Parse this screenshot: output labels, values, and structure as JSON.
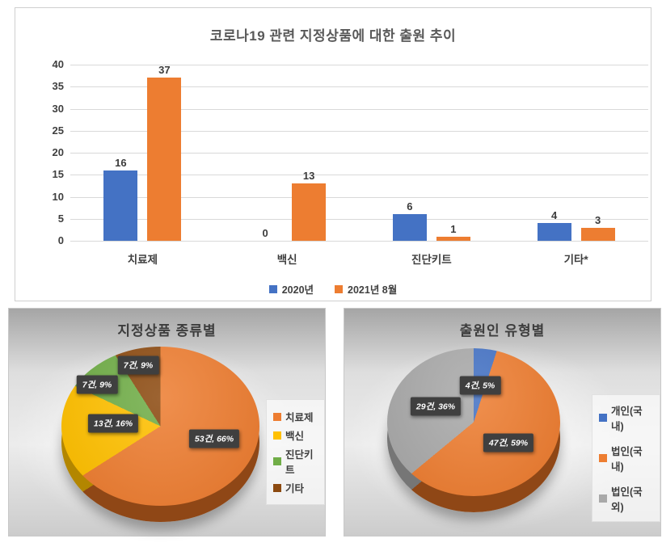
{
  "colors": {
    "blue": "#4472C4",
    "blue_dark": "#2c4d8e",
    "orange": "#ED7D31",
    "orange_dark": "#8f4716",
    "yellow": "#FFC000",
    "yellow_dark": "#b38600",
    "green": "#70AD47",
    "green_dark": "#4e7a31",
    "brown": "#8C4A10",
    "brown_dark": "#5a2e08",
    "gray": "#A9A9A9",
    "gray_dark": "#767676",
    "label_box": "#3F3F3F",
    "label_text": "#FFFFFF",
    "grid": "#D9D9D9",
    "axis_text": "#404040",
    "title_text": "#595959"
  },
  "chart_data": [
    {
      "id": "bar",
      "type": "bar",
      "title": "코로나19 관련 지정상품에 대한 출원 추이",
      "categories": [
        "치료제",
        "백신",
        "진단키트",
        "기타*"
      ],
      "series": [
        {
          "name": "2020년",
          "color_key": "blue",
          "values": [
            16,
            0,
            6,
            4
          ]
        },
        {
          "name": "2021년 8월",
          "color_key": "orange",
          "values": [
            37,
            13,
            1,
            3
          ]
        }
      ],
      "ylim": [
        0,
        40
      ],
      "y_ticks": [
        0,
        5,
        10,
        15,
        20,
        25,
        30,
        35,
        40
      ],
      "grid": true,
      "legend_position": "bottom"
    },
    {
      "id": "pie-products",
      "type": "pie",
      "title": "지정상품 종류별",
      "legend_position": "right",
      "slices": [
        {
          "label": "치료제",
          "value": 53,
          "pct": 66,
          "data_label": "53건, 66%",
          "color_key": "orange",
          "label_r": 0.62,
          "label_dy": -14
        },
        {
          "label": "백신",
          "value": 13,
          "pct": 16,
          "data_label": "13건, 16%",
          "color_key": "yellow",
          "label_r": 0.48,
          "label_dy": -6
        },
        {
          "label": "진단키트",
          "value": 7,
          "pct": 9,
          "data_label": "7건, 9%",
          "color_key": "green",
          "label_r": 0.85,
          "label_dy": 4
        },
        {
          "label": "기타",
          "value": 7,
          "pct": 9,
          "data_label": "7건, 9%",
          "color_key": "brown",
          "label_r": 0.8,
          "label_dy": 0
        }
      ]
    },
    {
      "id": "pie-applicants",
      "type": "pie",
      "title": "출원인 유형별",
      "legend_position": "right",
      "slices": [
        {
          "label": "개인(국내)",
          "value": 4,
          "pct": 5,
          "data_label": "4건, 5%",
          "color_key": "blue",
          "label_r": 0.5,
          "label_dy": 0
        },
        {
          "label": "법인(국내)",
          "value": 47,
          "pct": 59,
          "data_label": "47건, 59%",
          "color_key": "orange",
          "label_r": 0.49,
          "label_dy": 0
        },
        {
          "label": "법인(국외)",
          "value": 29,
          "pct": 36,
          "data_label": "29건, 36%",
          "color_key": "gray",
          "label_r": 0.49,
          "label_dy": 0
        }
      ]
    }
  ]
}
